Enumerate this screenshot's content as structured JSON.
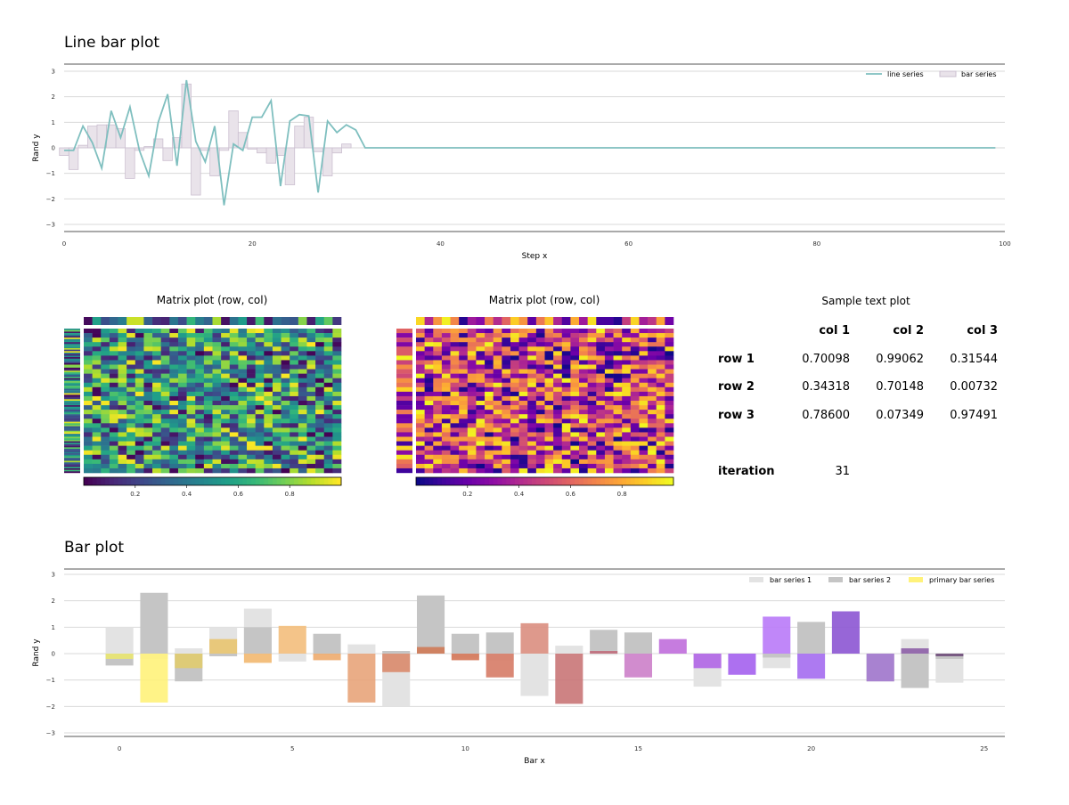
{
  "line_bar": {
    "title": "Line bar plot",
    "xlabel": "Step x",
    "ylabel": "Rand y",
    "legend_line": "line series",
    "legend_bar": "bar series"
  },
  "matrix1": {
    "title": "Matrix plot (row, col)"
  },
  "matrix2": {
    "title": "Matrix plot (row, col)"
  },
  "text_plot": {
    "title": "Sample text plot",
    "columns": [
      "col 1",
      "col 2",
      "col 3"
    ],
    "rows": [
      {
        "label": "row 1",
        "values": [
          "0.70098",
          "0.99062",
          "0.31544"
        ]
      },
      {
        "label": "row 2",
        "values": [
          "0.34318",
          "0.70148",
          "0.00732"
        ]
      },
      {
        "label": "row 3",
        "values": [
          "0.78600",
          "0.07349",
          "0.97491"
        ]
      }
    ],
    "iteration_label": "iteration",
    "iteration_value": "31"
  },
  "bar_plot": {
    "title": "Bar plot",
    "xlabel": "Bar x",
    "ylabel": "Rand y",
    "legend": [
      "bar series 1",
      "bar series 2",
      "primary bar series"
    ]
  },
  "colors": {
    "line": "#7fbfbf",
    "bar_fill": "#e9e3ea",
    "bar_edge": "#cbbfd0",
    "series1": "#e3e3e3",
    "series2": "#c5c5c5",
    "primary_legend": "#fff27a"
  },
  "chart_data": [
    {
      "type": "line",
      "name": "line-bar-plot",
      "xlim": [
        0,
        100
      ],
      "ylim": [
        -3,
        3
      ],
      "xticks": [
        0,
        20,
        40,
        60,
        80,
        100
      ],
      "yticks": [
        -3,
        -2,
        -1,
        0,
        1,
        2,
        3
      ],
      "grid": true,
      "legend_position": "top-right",
      "line_series": {
        "x": [
          0,
          1,
          2,
          3,
          4,
          5,
          6,
          7,
          8,
          9,
          10,
          11,
          12,
          13,
          14,
          15,
          16,
          17,
          18,
          19,
          20,
          21,
          22,
          23,
          24,
          25,
          26,
          27,
          28,
          29,
          30,
          31,
          32,
          99
        ],
        "y": [
          -0.1,
          -0.1,
          0.85,
          0.2,
          -0.8,
          1.45,
          0.4,
          1.6,
          -0.1,
          -1.1,
          1.0,
          2.1,
          -0.7,
          2.65,
          0.25,
          -0.55,
          0.85,
          -2.25,
          0.15,
          -0.1,
          1.2,
          1.2,
          1.85,
          -1.5,
          1.05,
          1.3,
          1.25,
          -1.75,
          1.05,
          0.6,
          0.9,
          0.7,
          0.0,
          0.0
        ]
      },
      "bar_series": {
        "x": [
          0,
          1,
          2,
          3,
          4,
          5,
          6,
          7,
          8,
          9,
          10,
          11,
          12,
          13,
          14,
          15,
          16,
          17,
          18,
          19,
          20,
          21,
          22,
          23,
          24,
          25,
          26,
          27,
          28,
          29,
          30,
          31
        ],
        "y": [
          -0.3,
          -0.85,
          0.1,
          0.85,
          0.9,
          0.9,
          0.75,
          -1.2,
          -0.1,
          0.05,
          0.35,
          -0.5,
          0.4,
          2.5,
          -1.85,
          -0.1,
          -1.1,
          -0.1,
          1.45,
          0.6,
          -0.05,
          -0.2,
          -0.6,
          -0.3,
          -1.45,
          0.85,
          1.2,
          -0.15,
          -1.1,
          -0.2,
          0.15,
          0.0
        ]
      }
    },
    {
      "type": "heatmap",
      "name": "matrix-plot-1",
      "colormap": "viridis",
      "rows": 32,
      "cols": 30,
      "colorbar_ticks": [
        0.2,
        0.4,
        0.6,
        0.8
      ],
      "clim": [
        0,
        1
      ]
    },
    {
      "type": "heatmap",
      "name": "matrix-plot-2",
      "colormap": "plasma",
      "rows": 32,
      "cols": 30,
      "colorbar_ticks": [
        0.2,
        0.4,
        0.6,
        0.8
      ],
      "clim": [
        0,
        1
      ]
    },
    {
      "type": "table",
      "name": "sample-text-plot"
    },
    {
      "type": "bar",
      "name": "bar-plot",
      "xlim": [
        -1.6,
        25.6
      ],
      "ylim": [
        -3.1,
        3.1
      ],
      "xticks": [
        0,
        5,
        10,
        15,
        20,
        25
      ],
      "yticks": [
        -3,
        -2,
        -1,
        0,
        1,
        2,
        3
      ],
      "grid": true,
      "legend_position": "top-right",
      "x": [
        0,
        1,
        2,
        3,
        4,
        5,
        6,
        7,
        8,
        9,
        10,
        11,
        12,
        13,
        14,
        15,
        16,
        17,
        18,
        19,
        20,
        21,
        22,
        23,
        24
      ],
      "series": [
        {
          "name": "bar series 1",
          "values": [
            1.0,
            -0.2,
            0.2,
            1.0,
            1.7,
            -0.3,
            -0.05,
            0.35,
            -2.0,
            2.1,
            -0.15,
            -0.25,
            -1.6,
            0.3,
            -0.05,
            0.25,
            0.0,
            -1.25,
            0.0,
            -0.55,
            0.0,
            0.0,
            0.0,
            0.55,
            -1.1
          ]
        },
        {
          "name": "bar series 2",
          "values": [
            -0.45,
            2.3,
            -1.05,
            -0.1,
            1.0,
            0.0,
            0.75,
            0.0,
            0.1,
            2.2,
            0.75,
            0.8,
            0.0,
            0.0,
            0.9,
            0.8,
            0.0,
            0.0,
            0.0,
            -0.15,
            1.2,
            0.0,
            -1.05,
            -1.3,
            -0.2
          ]
        },
        {
          "name": "primary bar series",
          "values": [
            -0.2,
            -1.85,
            -0.55,
            0.55,
            -0.35,
            1.05,
            -0.25,
            -1.85,
            -0.7,
            0.25,
            -0.25,
            -0.9,
            1.15,
            -1.9,
            0.1,
            -0.9,
            0.55,
            -0.55,
            -0.8,
            1.4,
            -0.95,
            1.6,
            -1.05,
            0.2,
            -0.1
          ],
          "colors": [
            "#e9e670",
            "#fff27a",
            "#e0cb6e",
            "#e8c46f",
            "#f2b870",
            "#f3be7c",
            "#edab6e",
            "#e8a47a",
            "#d9896c",
            "#cf7a57",
            "#d47556",
            "#d67b66",
            "#da8e80",
            "#c97677",
            "#c06d7b",
            "#cc80c9",
            "#c06edb",
            "#b065e6",
            "#a460ee",
            "#b97af8",
            "#a46cf0",
            "#8c55d3",
            "#a47ad0",
            "#8c5ea6",
            "#6f4d7a"
          ]
        }
      ]
    }
  ]
}
